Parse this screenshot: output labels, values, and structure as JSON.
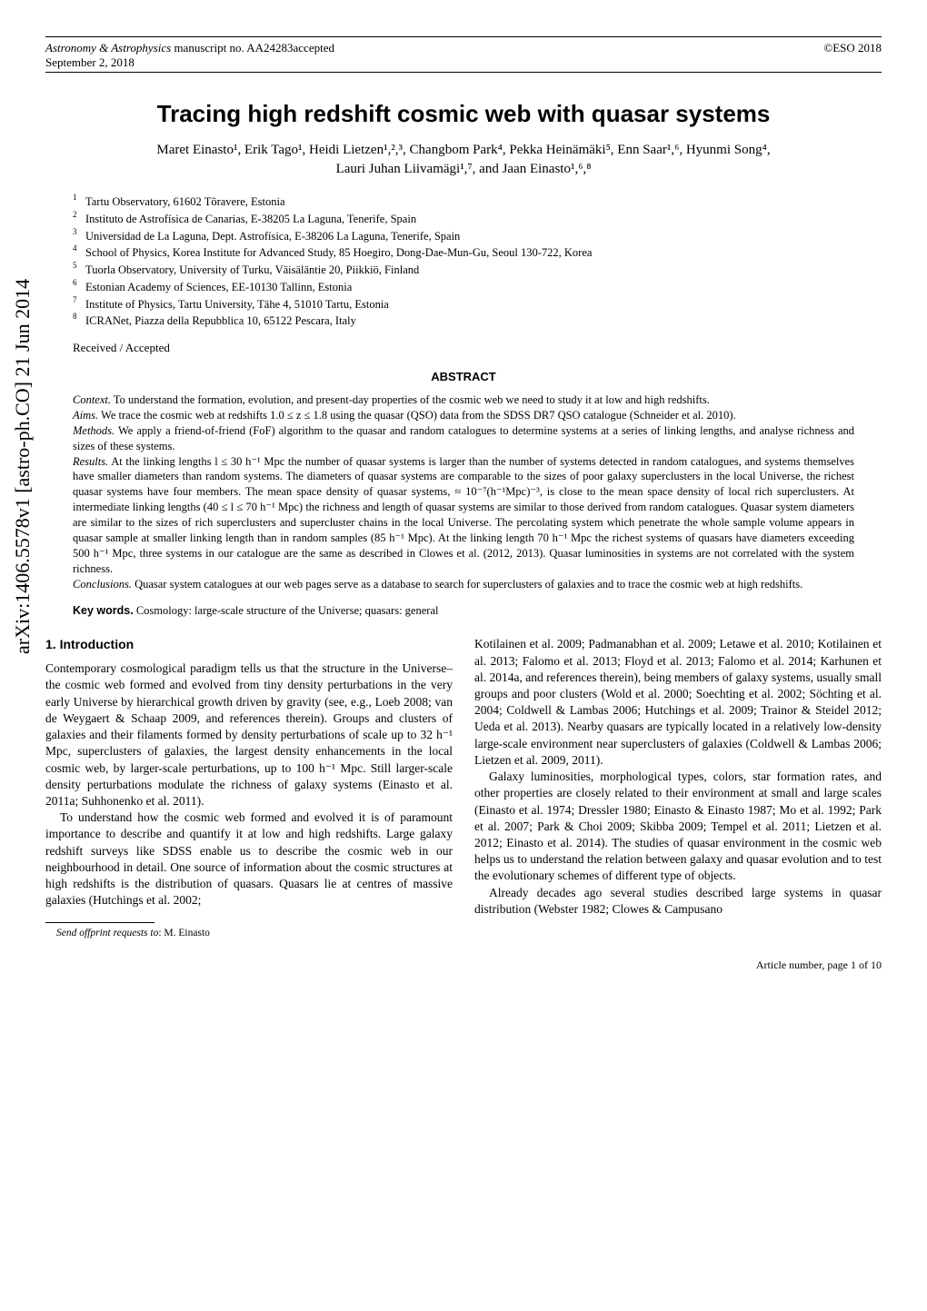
{
  "arxiv_tag": "arXiv:1406.5578v1  [astro-ph.CO]  21 Jun 2014",
  "header": {
    "journal": "Astronomy & Astrophysics",
    "manuscript": " manuscript no. AA24283accepted",
    "date": "September 2, 2018",
    "right": "©ESO 2018"
  },
  "title": "Tracing high redshift cosmic web with quasar systems",
  "authors_line1": "Maret Einasto¹, Erik Tago¹, Heidi Lietzen¹,²,³, Changbom Park⁴, Pekka Heinämäki⁵, Enn Saar¹,⁶, Hyunmi Song⁴,",
  "authors_line2": "Lauri Juhan Liivamägi¹,⁷, and Jaan Einasto¹,⁶,⁸",
  "affiliations": [
    {
      "n": "1",
      "text": "Tartu Observatory, 61602 Tõravere, Estonia"
    },
    {
      "n": "2",
      "text": "Instituto de Astrofísica de Canarias, E-38205 La Laguna, Tenerife, Spain"
    },
    {
      "n": "3",
      "text": "Universidad de La Laguna, Dept. Astrofísica, E-38206 La Laguna, Tenerife, Spain"
    },
    {
      "n": "4",
      "text": "School of Physics, Korea Institute for Advanced Study, 85 Hoegiro, Dong-Dae-Mun-Gu, Seoul 130-722, Korea"
    },
    {
      "n": "5",
      "text": "Tuorla Observatory, University of Turku, Väisäläntie 20, Piikkiö, Finland"
    },
    {
      "n": "6",
      "text": "Estonian Academy of Sciences, EE-10130 Tallinn, Estonia"
    },
    {
      "n": "7",
      "text": "Institute of Physics, Tartu University, Tähe 4, 51010 Tartu, Estonia"
    },
    {
      "n": "8",
      "text": "ICRANet, Piazza della Repubblica 10, 65122 Pescara, Italy"
    }
  ],
  "received": "Received / Accepted",
  "abstract_heading": "ABSTRACT",
  "abstract": {
    "context_label": "Context.",
    "context": " To understand the formation, evolution, and present-day properties of the cosmic web we need to study it at low and high redshifts.",
    "aims_label": "Aims.",
    "aims": " We trace the cosmic web at redshifts 1.0 ≤ z ≤ 1.8 using the quasar (QSO) data from the SDSS DR7 QSO catalogue (Schneider et al. 2010).",
    "methods_label": "Methods.",
    "methods": " We apply a friend-of-friend (FoF) algorithm to the quasar and random catalogues to determine systems at a series of linking lengths, and analyse richness and sizes of these systems.",
    "results_label": "Results.",
    "results": " At the linking lengths l ≤ 30 h⁻¹ Mpc the number of quasar systems is larger than the number of systems detected in random catalogues, and systems themselves have smaller diameters than random systems. The diameters of quasar systems are comparable to the sizes of poor galaxy superclusters in the local Universe, the richest quasar systems have four members. The mean space density of quasar systems, ≈ 10⁻⁷(h⁻¹Mpc)⁻³, is close to the mean space density of local rich superclusters. At intermediate linking lengths (40 ≤ l ≤ 70 h⁻¹ Mpc) the richness and length of quasar systems are similar to those derived from random catalogues. Quasar system diameters are similar to the sizes of rich superclusters and supercluster chains in the local Universe. The percolating system which penetrate the whole sample volume appears in quasar sample at smaller linking length than in random samples (85 h⁻¹ Mpc). At the linking length 70 h⁻¹ Mpc the richest systems of quasars have diameters exceeding 500 h⁻¹ Mpc, three systems in our catalogue are the same as described in Clowes et al. (2012, 2013). Quasar luminosities in systems are not correlated with the system richness.",
    "conclusions_label": "Conclusions.",
    "conclusions": " Quasar system catalogues at our web pages serve as a database to search for superclusters of galaxies and to trace the cosmic web at high redshifts."
  },
  "keywords_label": "Key words.",
  "keywords": " Cosmology: large-scale structure of the Universe; quasars: general",
  "section1_heading": "1. Introduction",
  "col_left": {
    "p1": "Contemporary cosmological paradigm tells us that the structure in the Universe–the cosmic web formed and evolved from tiny density perturbations in the very early Universe by hierarchical growth driven by gravity (see, e.g., Loeb 2008; van de Weygaert & Schaap 2009, and references therein). Groups and clusters of galaxies and their filaments formed by density perturbations of scale up to 32 h⁻¹ Mpc, superclusters of galaxies, the largest density enhancements in the local cosmic web, by larger-scale perturbations, up to 100 h⁻¹ Mpc. Still larger-scale density perturbations modulate the richness of galaxy systems (Einasto et al. 2011a; Suhhonenko et al. 2011).",
    "p2": "To understand how the cosmic web formed and evolved it is of paramount importance to describe and quantify it at low and high redshifts. Large galaxy redshift surveys like SDSS enable us to describe the cosmic web in our neighbourhood in detail. One source of information about the cosmic structures at high redshifts is the distribution of quasars. Quasars lie at centres of massive galaxies (Hutchings et al. 2002;"
  },
  "col_right": {
    "p1": "Kotilainen et al. 2009; Padmanabhan et al. 2009; Letawe et al. 2010; Kotilainen et al. 2013; Falomo et al. 2013; Floyd et al. 2013; Falomo et al. 2014; Karhunen et al. 2014a, and references therein), being members of galaxy systems, usually small groups and poor clusters (Wold et al. 2000; Soechting et al. 2002; Söchting et al. 2004; Coldwell & Lambas 2006; Hutchings et al. 2009; Trainor & Steidel 2012; Ueda et al. 2013). Nearby quasars are typically located in a relatively low-density large-scale environment near superclusters of galaxies (Coldwell & Lambas 2006; Lietzen et al. 2009, 2011).",
    "p2": "Galaxy luminosities, morphological types, colors, star formation rates, and other properties are closely related to their environment at small and large scales (Einasto et al. 1974; Dressler 1980; Einasto & Einasto 1987; Mo et al. 1992; Park et al. 2007; Park & Choi 2009; Skibba 2009; Tempel et al. 2011; Lietzen et al. 2012; Einasto et al. 2014). The studies of quasar environment in the cosmic web helps us to understand the relation between galaxy and quasar evolution and to test the evolutionary schemes of different type of objects.",
    "p3": "Already decades ago several studies described large systems in quasar distribution (Webster 1982; Clowes & Campusano"
  },
  "footnote_label": "Send offprint requests to",
  "footnote_text": ": M. Einasto",
  "page_footer": "Article number, page 1 of 10"
}
